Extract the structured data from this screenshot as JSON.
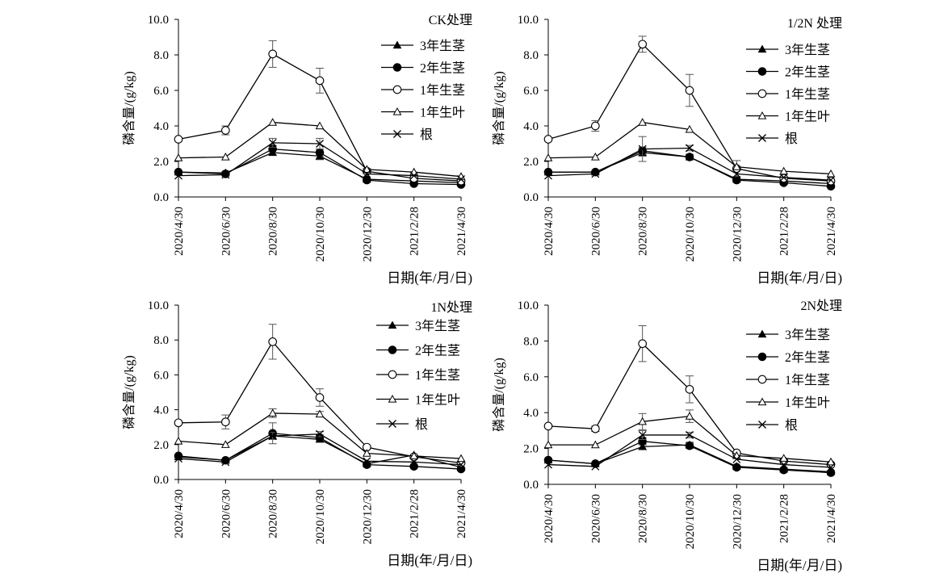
{
  "chart_data": [
    {
      "type": "line",
      "title": "CK处理",
      "ylabel": "磷含量/(g/kg)",
      "xlabel": "日期(年/月/日)",
      "ylim": [
        0,
        10
      ],
      "yticks": [
        "0.0",
        "2.0",
        "4.0",
        "6.0",
        "8.0",
        "10.0"
      ],
      "categories": [
        "2020/4/30",
        "2020/6/30",
        "2020/8/30",
        "2020/10/30",
        "2020/12/30",
        "2021/2/28",
        "2021/4/30"
      ],
      "legend_position": "right",
      "series": [
        {
          "name": "3年生茎",
          "marker": "filled-triangle",
          "values": [
            1.4,
            1.35,
            2.5,
            2.3,
            1.0,
            0.9,
            0.8
          ],
          "errors": [
            0.1,
            0.1,
            0.15,
            0.2,
            0.1,
            0.1,
            0.1
          ]
        },
        {
          "name": "2年生茎",
          "marker": "filled-circle",
          "values": [
            1.4,
            1.3,
            2.7,
            2.5,
            0.95,
            0.75,
            0.7
          ],
          "errors": [
            0.1,
            0.1,
            0.2,
            0.2,
            0.1,
            0.1,
            0.1
          ]
        },
        {
          "name": "1年生茎",
          "marker": "open-circle",
          "values": [
            3.25,
            3.75,
            8.05,
            6.55,
            1.45,
            1.05,
            0.9
          ],
          "errors": [
            0.1,
            0.25,
            0.75,
            0.7,
            0.15,
            0.1,
            0.1
          ]
        },
        {
          "name": "1年生叶",
          "marker": "open-triangle",
          "values": [
            2.2,
            2.25,
            4.2,
            4.0,
            1.55,
            1.4,
            1.15
          ],
          "errors": [
            0.05,
            0.05,
            0.1,
            0.1,
            0.1,
            0.1,
            0.05
          ]
        },
        {
          "name": "根",
          "marker": "cross",
          "values": [
            1.2,
            1.25,
            3.05,
            3.0,
            1.3,
            1.2,
            1.0
          ],
          "errors": [
            0.05,
            0.05,
            0.25,
            0.3,
            0.1,
            0.1,
            0.1
          ]
        }
      ]
    },
    {
      "type": "line",
      "title": "1/2N 处理",
      "ylabel": "磷含量/(g/kg)",
      "xlabel": "日期(年/月/日)",
      "ylim": [
        0,
        10
      ],
      "yticks": [
        "0.0",
        "2.0",
        "4.0",
        "6.0",
        "8.0",
        "10.0"
      ],
      "categories": [
        "2020/4/30",
        "2020/6/30",
        "2020/8/30",
        "2020/10/30",
        "2020/12/30",
        "2021/2/28",
        "2021/4/30"
      ],
      "legend_position": "right",
      "series": [
        {
          "name": "3年生茎",
          "marker": "filled-triangle",
          "values": [
            1.4,
            1.4,
            2.5,
            2.25,
            1.0,
            0.9,
            0.75
          ],
          "errors": [
            0.1,
            0.1,
            0.2,
            0.15,
            0.1,
            0.1,
            0.05
          ]
        },
        {
          "name": "2年生茎",
          "marker": "filled-circle",
          "values": [
            1.4,
            1.4,
            2.6,
            2.25,
            0.95,
            0.8,
            0.6
          ],
          "errors": [
            0.1,
            0.1,
            0.2,
            0.15,
            0.1,
            0.1,
            0.05
          ]
        },
        {
          "name": "1年生茎",
          "marker": "open-circle",
          "values": [
            3.25,
            4.0,
            8.6,
            6.0,
            1.6,
            1.05,
            0.9
          ],
          "errors": [
            0.1,
            0.3,
            0.45,
            0.9,
            0.45,
            0.1,
            0.1
          ]
        },
        {
          "name": "1年生叶",
          "marker": "open-triangle",
          "values": [
            2.2,
            2.25,
            4.2,
            3.8,
            1.7,
            1.45,
            1.3
          ],
          "errors": [
            0.05,
            0.05,
            0.1,
            0.1,
            0.1,
            0.05,
            0.05
          ]
        },
        {
          "name": "根",
          "marker": "cross",
          "values": [
            1.2,
            1.3,
            2.7,
            2.75,
            1.3,
            1.1,
            0.95
          ],
          "errors": [
            0.05,
            0.05,
            0.7,
            0.15,
            0.1,
            0.1,
            0.05
          ]
        }
      ]
    },
    {
      "type": "line",
      "title": "1N处理",
      "ylabel": "磷含量/(g/kg)",
      "xlabel": "日期(年/月/日)",
      "ylim": [
        0,
        10
      ],
      "yticks": [
        "0.0",
        "2.0",
        "4.0",
        "6.0",
        "8.0",
        "10.0"
      ],
      "categories": [
        "2020/4/30",
        "2020/6/30",
        "2020/8/30",
        "2020/10/30",
        "2020/12/30",
        "2021/2/28",
        "2021/4/30"
      ],
      "legend_position": "right",
      "series": [
        {
          "name": "3年生茎",
          "marker": "filled-triangle",
          "values": [
            1.3,
            1.1,
            2.5,
            2.3,
            0.9,
            1.4,
            0.7
          ],
          "errors": [
            0.1,
            0.1,
            0.2,
            0.15,
            0.1,
            0.1,
            0.05
          ]
        },
        {
          "name": "2年生茎",
          "marker": "filled-circle",
          "values": [
            1.35,
            1.1,
            2.65,
            2.4,
            0.85,
            0.75,
            0.6
          ],
          "errors": [
            0.1,
            0.1,
            0.6,
            0.15,
            0.1,
            0.1,
            0.05
          ]
        },
        {
          "name": "1年生茎",
          "marker": "open-circle",
          "values": [
            3.25,
            3.3,
            7.9,
            4.7,
            1.85,
            1.3,
            0.95
          ],
          "errors": [
            0.1,
            0.4,
            1.0,
            0.5,
            0.1,
            0.1,
            0.1
          ]
        },
        {
          "name": "1年生叶",
          "marker": "open-triangle",
          "values": [
            2.2,
            2.0,
            3.8,
            3.75,
            1.5,
            1.35,
            1.2
          ],
          "errors": [
            0.05,
            0.05,
            0.25,
            0.15,
            0.1,
            0.05,
            0.05
          ]
        },
        {
          "name": "根",
          "marker": "cross",
          "values": [
            1.2,
            1.0,
            2.5,
            2.6,
            1.05,
            1.0,
            0.85
          ],
          "errors": [
            0.05,
            0.05,
            0.2,
            0.15,
            0.1,
            0.05,
            0.05
          ]
        }
      ]
    },
    {
      "type": "line",
      "title": "2N处理",
      "ylabel": "磷含量/(g/kg)",
      "xlabel": "日期(年/月/日)",
      "ylim": [
        0,
        10
      ],
      "yticks": [
        "0.0",
        "2.0",
        "4.0",
        "6.0",
        "8.0",
        "10.0"
      ],
      "categories": [
        "2020/4/30",
        "2020/6/30",
        "2020/8/30",
        "2020/10/30",
        "2020/12/30",
        "2021/2/28",
        "2021/4/30"
      ],
      "legend_position": "right",
      "series": [
        {
          "name": "3年生茎",
          "marker": "filled-triangle",
          "values": [
            1.35,
            1.15,
            2.1,
            2.2,
            1.0,
            0.85,
            0.7
          ],
          "errors": [
            0.1,
            0.1,
            0.15,
            0.15,
            0.1,
            0.1,
            0.05
          ]
        },
        {
          "name": "2年生茎",
          "marker": "filled-circle",
          "values": [
            1.35,
            1.15,
            2.4,
            2.15,
            0.95,
            0.8,
            0.65
          ],
          "errors": [
            0.1,
            0.1,
            0.2,
            0.15,
            0.1,
            0.1,
            0.05
          ]
        },
        {
          "name": "1年生茎",
          "marker": "open-circle",
          "values": [
            3.25,
            3.1,
            7.85,
            5.3,
            1.75,
            1.3,
            1.1
          ],
          "errors": [
            0.1,
            0.15,
            1.0,
            0.75,
            0.1,
            0.1,
            0.1
          ]
        },
        {
          "name": "1年生叶",
          "marker": "open-triangle",
          "values": [
            2.2,
            2.2,
            3.5,
            3.8,
            1.6,
            1.45,
            1.25
          ],
          "errors": [
            0.05,
            0.05,
            0.45,
            0.35,
            0.1,
            0.05,
            0.05
          ]
        },
        {
          "name": "根",
          "marker": "cross",
          "values": [
            1.1,
            1.0,
            2.75,
            2.75,
            1.4,
            1.1,
            0.95
          ],
          "errors": [
            0.05,
            0.05,
            0.25,
            0.15,
            0.1,
            0.05,
            0.05
          ]
        }
      ]
    }
  ]
}
